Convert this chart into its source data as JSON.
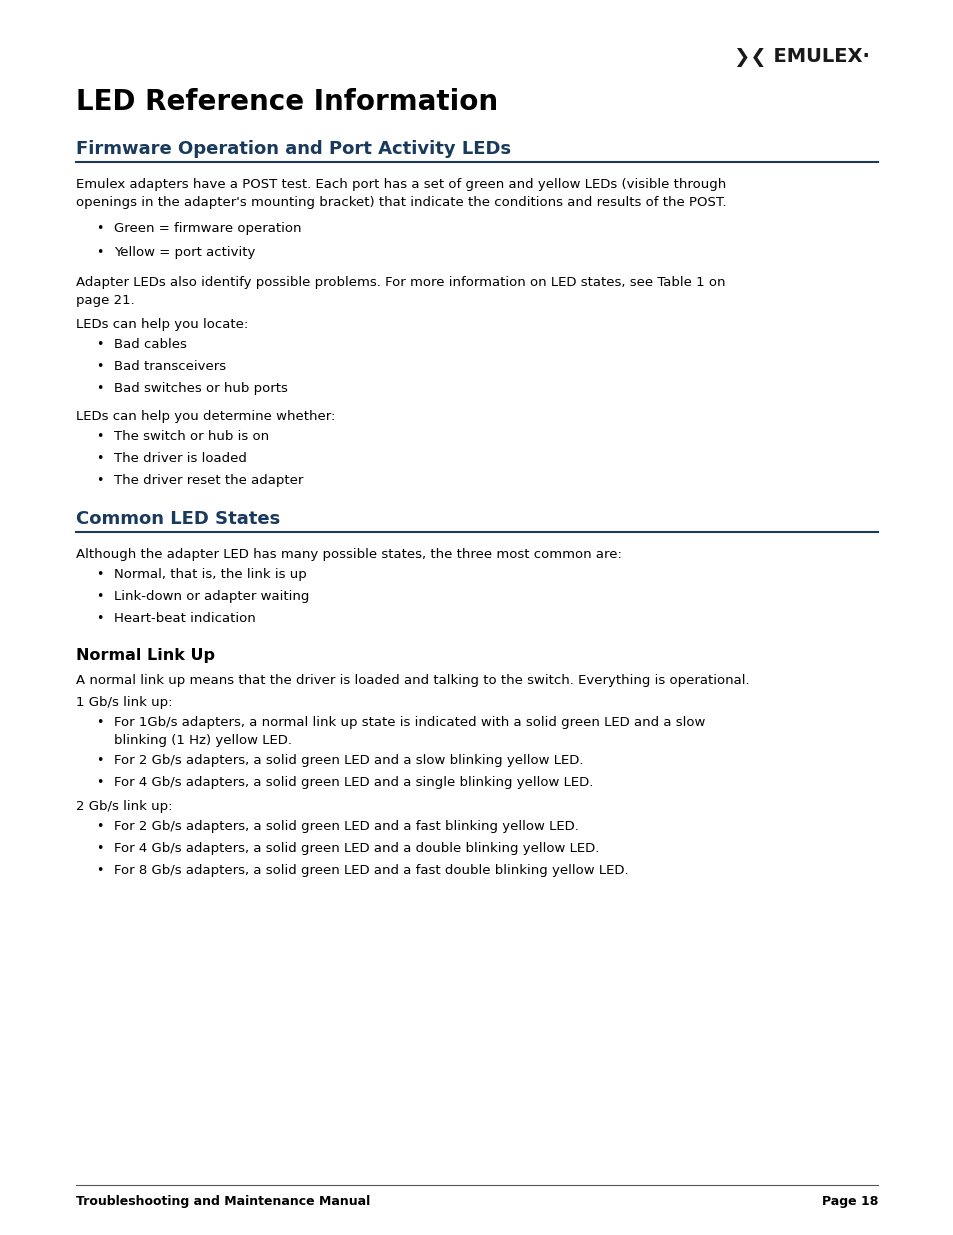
{
  "bg_color": "#ffffff",
  "title_main": "LED Reference Information",
  "section1_title": "Firmware Operation and Port Activity LEDs",
  "section2_title": "Common LED States",
  "section3_title": "Normal Link Up",
  "body_text1a": "Emulex adapters have a POST test. Each port has a set of green and yellow LEDs (visible through",
  "body_text1b": "openings in the adapter's mounting bracket) that indicate the conditions and results of the POST.",
  "bullet1": [
    "Green = firmware operation",
    "Yellow = port activity"
  ],
  "body_text2a": "Adapter LEDs also identify possible problems. For more information on LED states, see Table 1 on",
  "body_text2b": "page 21.",
  "body_text3": "LEDs can help you locate:",
  "bullet2": [
    "Bad cables",
    "Bad transceivers",
    "Bad switches or hub ports"
  ],
  "body_text4": "LEDs can help you determine whether:",
  "bullet3": [
    "The switch or hub is on",
    "The driver is loaded",
    "The driver reset the adapter"
  ],
  "body_text5": "Although the adapter LED has many possible states, the three most common are:",
  "bullet4": [
    "Normal, that is, the link is up",
    "Link-down or adapter waiting",
    "Heart-beat indication"
  ],
  "body_text6": "A normal link up means that the driver is loaded and talking to the switch. Everything is operational.",
  "body_text7": "1 Gb/s link up:",
  "bullet5a": "For 1Gb/s adapters, a normal link up state is indicated with a solid green LED and a slow",
  "bullet5a2": "blinking (1 Hz) yellow LED.",
  "bullet5b": "For 2 Gb/s adapters, a solid green LED and a slow blinking yellow LED.",
  "bullet5c": "For 4 Gb/s adapters, a solid green LED and a single blinking yellow LED.",
  "body_text8": "2 Gb/s link up:",
  "bullet6": [
    "For 2 Gb/s adapters, a solid green LED and a fast blinking yellow LED.",
    "For 4 Gb/s adapters, a solid green LED and a double blinking yellow LED.",
    "For 8 Gb/s adapters, a solid green LED and a fast double blinking yellow LED."
  ],
  "footer_left": "Troubleshooting and Maintenance Manual",
  "footer_right": "Page 18",
  "text_color": "#000000",
  "section_title_color": "#1a3a5c",
  "subsection_color": "#000000",
  "line_color": "#1a3a5c",
  "footer_line_color": "#555555"
}
